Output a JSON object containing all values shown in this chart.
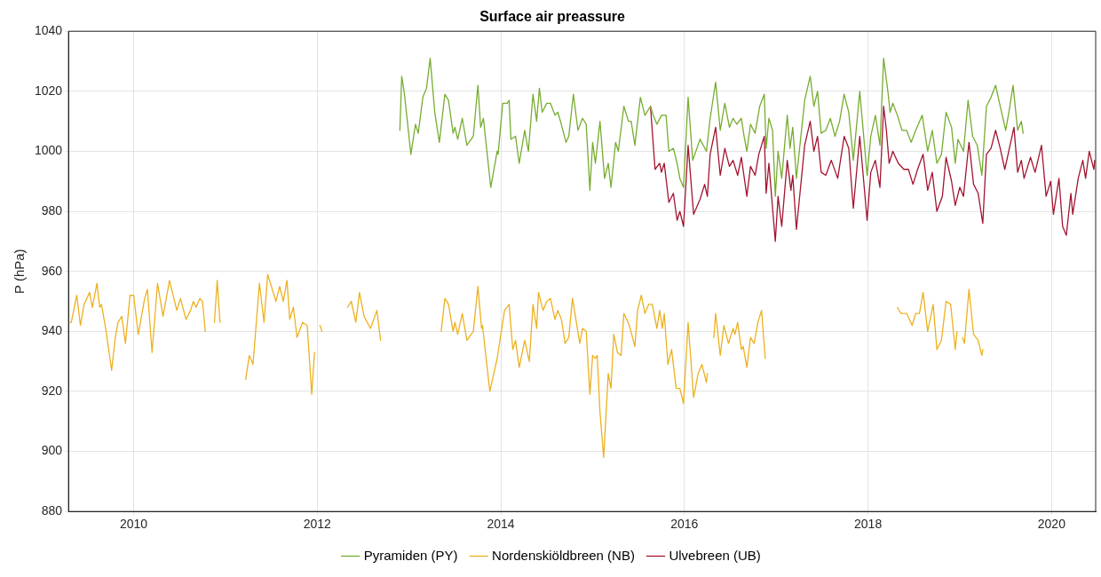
{
  "chart_data": {
    "type": "line",
    "title": "Surface air preassure",
    "ylabel": "P (hPa)",
    "xlim": [
      2009.29,
      2020.48
    ],
    "xticks": [
      2010,
      2012,
      2014,
      2016,
      2018,
      2020
    ],
    "ylim": [
      880,
      1040
    ],
    "yticks": [
      880,
      900,
      920,
      940,
      960,
      980,
      1000,
      1020,
      1040
    ],
    "grid": true,
    "legend": "bottom",
    "marker": "none",
    "line_style": "solid",
    "series": [
      {
        "name": "Pyramiden (PY)",
        "color": "#77ac30",
        "x": [
          2012.9,
          2012.92,
          2012.95,
          2013.02,
          2013.07,
          2013.1,
          2013.15,
          2013.19,
          2013.23,
          2013.28,
          2013.33,
          2013.39,
          2013.43,
          2013.48,
          2013.5,
          2013.53,
          2013.58,
          2013.63,
          2013.7,
          2013.75,
          2013.78,
          2013.81,
          2013.89,
          2013.96,
          2013.97,
          2014.02,
          2014.07,
          2014.09,
          2014.11,
          2014.16,
          2014.2,
          2014.26,
          2014.3,
          2014.35,
          2014.39,
          2014.42,
          2014.45,
          2014.5,
          2014.54,
          2014.59,
          2014.62,
          2014.65,
          2014.71,
          2014.74,
          2014.79,
          2014.84,
          2014.89,
          2014.93,
          2014.97,
          2015.0,
          2015.03,
          2015.08,
          2015.13,
          2015.17,
          2015.2,
          2015.25,
          2015.28,
          2015.34,
          2015.39,
          2015.42,
          2015.46,
          2015.52,
          2015.57,
          2015.63,
          2015.66,
          2015.7,
          2015.75,
          2015.8,
          2015.83,
          2015.88,
          2015.92,
          2015.95,
          2015.99,
          2016.04,
          2016.09,
          2016.17,
          2016.24,
          2016.28,
          2016.34,
          2016.39,
          2016.44,
          2016.49,
          2016.53,
          2016.57,
          2016.62,
          2016.65,
          2016.68,
          2016.72,
          2016.77,
          2016.82,
          2016.87,
          2016.89,
          2016.92,
          2016.96,
          2016.99,
          2017.02,
          2017.06,
          2017.12,
          2017.15,
          2017.18,
          2017.22,
          2017.31,
          2017.37,
          2017.41,
          2017.45,
          2017.49,
          2017.54,
          2017.59,
          2017.64,
          2017.69,
          2017.74,
          2017.79,
          2017.84,
          2017.91,
          2017.99,
          2018.03,
          2018.08,
          2018.13,
          2018.17,
          2018.22,
          2018.24,
          2018.27,
          2018.32,
          2018.37,
          2018.42,
          2018.47,
          2018.52,
          2018.59,
          2018.65,
          2018.7,
          2018.75,
          2018.8,
          2018.85,
          2018.91,
          2018.95,
          2018.98,
          2019.04,
          2019.09,
          2019.14,
          2019.19,
          2019.24,
          2019.29,
          2019.34,
          2019.39,
          2019.44,
          2019.5,
          2019.54,
          2019.58,
          2019.63,
          2019.67,
          2019.69
        ],
        "values": [
          1007,
          1025,
          1019,
          999,
          1009,
          1006,
          1018,
          1021,
          1031,
          1013,
          1003,
          1019,
          1017,
          1006,
          1008,
          1004,
          1011,
          1002,
          1005,
          1022,
          1008,
          1011,
          988,
          1000,
          999,
          1016,
          1016,
          1017,
          1004,
          1005,
          996,
          1007,
          1000,
          1019,
          1010,
          1021,
          1013,
          1016,
          1016,
          1012,
          1013,
          1010,
          1003,
          1005,
          1019,
          1007,
          1011,
          1009,
          987,
          1003,
          996,
          1010,
          991,
          996,
          988,
          1003,
          1000,
          1015,
          1010,
          1010,
          1002,
          1018,
          1012,
          1015,
          1012,
          1009,
          1012,
          1012,
          1000,
          1001,
          996,
          991,
          988,
          1018,
          997,
          1004,
          1000,
          1011,
          1023,
          1007,
          1016,
          1008,
          1011,
          1009,
          1011,
          1005,
          1000,
          1009,
          1006,
          1015,
          1019,
          1001,
          1011,
          1007,
          985,
          1000,
          991,
          1012,
          1001,
          1008,
          991,
          1017,
          1025,
          1015,
          1020,
          1006,
          1007,
          1011,
          1005,
          1010,
          1019,
          1013,
          997,
          1020,
          992,
          1005,
          1012,
          1002,
          1031,
          1019,
          1013,
          1016,
          1012,
          1007,
          1007,
          1003,
          1007,
          1012,
          1000,
          1007,
          996,
          999,
          1013,
          1008,
          996,
          1004,
          1000,
          1017,
          1005,
          1002,
          992,
          1015,
          1018,
          1022,
          1015,
          1007,
          1014,
          1022,
          1007,
          1010,
          1006
        ]
      },
      {
        "name": "Nordenskiöldbreen (NB)",
        "color": "#edb120",
        "x": [
          2009.29,
          2009.32,
          2009.38,
          2009.42,
          2009.46,
          2009.52,
          2009.55,
          2009.6,
          2009.63,
          2009.65,
          2009.7,
          2009.76,
          2009.8,
          2009.83,
          2009.87,
          2009.91,
          2009.96,
          2010.0,
          2010.05,
          2010.12,
          2010.15,
          2010.2,
          2010.26,
          2010.32,
          2010.39,
          2010.47,
          2010.51,
          2010.57,
          2010.62,
          2010.65,
          2010.68,
          2010.72,
          2010.75,
          2010.78,
          2010.84,
          2010.88,
          2010.91,
          2010.94,
          2011.1,
          2011.22,
          2011.26,
          2011.3,
          2011.37,
          2011.42,
          2011.46,
          2011.55,
          2011.59,
          2011.63,
          2011.67,
          2011.7,
          2011.74,
          2011.78,
          2011.84,
          2011.89,
          2011.94,
          2011.97,
          2012.0,
          2012.03,
          2012.05,
          2012.2,
          2012.33,
          2012.37,
          2012.42,
          2012.46,
          2012.51,
          2012.58,
          2012.65,
          2012.69,
          2013.0,
          2013.35,
          2013.39,
          2013.43,
          2013.48,
          2013.5,
          2013.53,
          2013.58,
          2013.63,
          2013.7,
          2013.75,
          2013.79,
          2013.8,
          2013.88,
          2013.96,
          2014.04,
          2014.09,
          2014.13,
          2014.16,
          2014.2,
          2014.26,
          2014.31,
          2014.35,
          2014.39,
          2014.41,
          2014.46,
          2014.5,
          2014.54,
          2014.59,
          2014.62,
          2014.66,
          2014.7,
          2014.74,
          2014.78,
          2014.86,
          2014.89,
          2014.93,
          2014.97,
          2015.0,
          2015.03,
          2015.05,
          2015.08,
          2015.12,
          2015.17,
          2015.2,
          2015.23,
          2015.27,
          2015.31,
          2015.34,
          2015.4,
          2015.46,
          2015.49,
          2015.53,
          2015.57,
          2015.61,
          2015.65,
          2015.7,
          2015.73,
          2015.76,
          2015.78,
          2015.82,
          2015.86,
          2015.91,
          2015.95,
          2015.99,
          2016.04,
          2016.1,
          2016.15,
          2016.19,
          2016.24,
          2016.25,
          2016.28,
          2016.32,
          2016.34,
          2016.39,
          2016.43,
          2016.48,
          2016.53,
          2016.55,
          2016.58,
          2016.62,
          2016.64,
          2016.68,
          2016.72,
          2016.76,
          2016.8,
          2016.84,
          2016.88,
          2017.5,
          2018.32,
          2018.36,
          2018.42,
          2018.48,
          2018.52,
          2018.56,
          2018.6,
          2018.65,
          2018.71,
          2018.75,
          2018.8,
          2018.85,
          2018.9,
          2018.95,
          2018.97,
          2019.0,
          2019.03,
          2019.05,
          2019.1,
          2019.15,
          2019.2,
          2019.24,
          2019.25
        ],
        "values": [
          943,
          943,
          952,
          942,
          949,
          953,
          948,
          956,
          948,
          949,
          940,
          927,
          938,
          943,
          945,
          936,
          952,
          952,
          939,
          951,
          954,
          933,
          956,
          945,
          957,
          947,
          951,
          944,
          947,
          950,
          948,
          951,
          950,
          940,
          null,
          943,
          957,
          943,
          null,
          924,
          932,
          929,
          956,
          943,
          959,
          950,
          955,
          950,
          957,
          944,
          948,
          938,
          943,
          942,
          919,
          933,
          null,
          942,
          940,
          null,
          948,
          950,
          943,
          953,
          945,
          941,
          947,
          937,
          null,
          940,
          951,
          949,
          940,
          943,
          939,
          946,
          937,
          940,
          955,
          941,
          942,
          920,
          931,
          947,
          949,
          934,
          937,
          928,
          937,
          930,
          949,
          941,
          953,
          947,
          950,
          951,
          944,
          947,
          944,
          936,
          938,
          951,
          936,
          941,
          940,
          919,
          932,
          931,
          932,
          913,
          898,
          926,
          921,
          939,
          933,
          932,
          946,
          942,
          935,
          947,
          952,
          946,
          949,
          949,
          941,
          947,
          941,
          946,
          929,
          934,
          921,
          921,
          916,
          943,
          918,
          926,
          929,
          923,
          926,
          null,
          938,
          946,
          932,
          942,
          936,
          941,
          939,
          943,
          934,
          935,
          928,
          938,
          936,
          943,
          947,
          931,
          null,
          948,
          946,
          946,
          942,
          946,
          946,
          953,
          940,
          949,
          934,
          937,
          950,
          949,
          934,
          940,
          null,
          938,
          936,
          954,
          939,
          937,
          932,
          934
        ]
      },
      {
        "name": "Ulvebreen (UB)",
        "color": "#a2142f",
        "x": [
          2015.63,
          2015.68,
          2015.73,
          2015.75,
          2015.78,
          2015.83,
          2015.88,
          2015.92,
          2015.95,
          2015.99,
          2016.04,
          2016.1,
          2016.17,
          2016.22,
          2016.25,
          2016.28,
          2016.34,
          2016.39,
          2016.44,
          2016.49,
          2016.53,
          2016.58,
          2016.62,
          2016.68,
          2016.72,
          2016.77,
          2016.81,
          2016.87,
          2016.89,
          2016.92,
          2016.99,
          2017.02,
          2017.06,
          2017.12,
          2017.16,
          2017.18,
          2017.22,
          2017.31,
          2017.37,
          2017.41,
          2017.45,
          2017.49,
          2017.54,
          2017.6,
          2017.67,
          2017.74,
          2017.79,
          2017.84,
          2017.91,
          2017.99,
          2018.03,
          2018.08,
          2018.13,
          2018.17,
          2018.2,
          2018.23,
          2018.27,
          2018.33,
          2018.39,
          2018.44,
          2018.49,
          2018.54,
          2018.6,
          2018.65,
          2018.7,
          2018.75,
          2018.81,
          2018.85,
          2018.91,
          2018.95,
          2019.0,
          2019.04,
          2019.1,
          2019.15,
          2019.2,
          2019.25,
          2019.29,
          2019.34,
          2019.39,
          2019.44,
          2019.49,
          2019.54,
          2019.59,
          2019.63,
          2019.67,
          2019.7,
          2019.77,
          2019.82,
          2019.89,
          2019.94,
          2019.99,
          2020.02,
          2020.08,
          2020.12,
          2020.16,
          2020.21,
          2020.23,
          2020.29,
          2020.34,
          2020.37,
          2020.41,
          2020.46,
          2020.47
        ],
        "values": [
          1015,
          994,
          996,
          993,
          996,
          983,
          986,
          977,
          980,
          975,
          1002,
          979,
          984,
          989,
          985,
          999,
          1008,
          992,
          1001,
          995,
          997,
          992,
          998,
          985,
          995,
          992,
          999,
          1005,
          986,
          996,
          970,
          985,
          975,
          997,
          987,
          992,
          974,
          1002,
          1010,
          1000,
          1005,
          993,
          992,
          997,
          991,
          1005,
          1001,
          981,
          1005,
          977,
          993,
          997,
          988,
          1015,
          1007,
          996,
          1000,
          996,
          994,
          994,
          989,
          994,
          999,
          987,
          993,
          980,
          985,
          998,
          990,
          982,
          988,
          985,
          1003,
          989,
          986,
          976,
          999,
          1001,
          1007,
          1001,
          994,
          1001,
          1008,
          993,
          997,
          991,
          998,
          993,
          1002,
          985,
          990,
          979,
          991,
          975,
          972,
          986,
          979,
          991,
          997,
          991,
          1000,
          994,
          997
        ]
      }
    ]
  }
}
